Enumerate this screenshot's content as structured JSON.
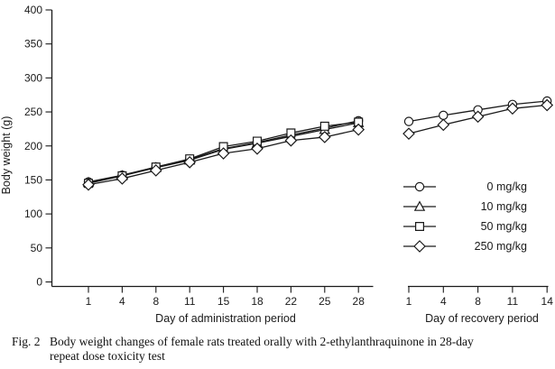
{
  "figure": {
    "caption_label": "Fig. 2",
    "caption_line1": "Body weight changes of female rats treated orally with 2-ethylanthraquinone in 28-day",
    "caption_line2": "repeat dose toxicity test"
  },
  "chart_data": {
    "type": "line",
    "title": "",
    "ylabel": "Body weight (g)",
    "ylim": [
      0,
      400
    ],
    "y_ticks": [
      0,
      50,
      100,
      150,
      200,
      250,
      300,
      350,
      400
    ],
    "grid": false,
    "line_color": "#1a1a1a",
    "marker_fill": "#ffffff",
    "panels": [
      {
        "name": "administration",
        "xlabel": "Day of administration period",
        "x": [
          1,
          4,
          8,
          11,
          15,
          18,
          22,
          25,
          28
        ],
        "series": [
          {
            "name": "0 mg/kg",
            "marker": "circle",
            "values": [
              147,
              157,
              169,
              180,
              196,
              205,
              216,
              226,
              237
            ]
          },
          {
            "name": "10 mg/kg",
            "marker": "triangle",
            "values": [
              146,
              156,
              168,
              179,
              195,
              204,
              214,
              224,
              234
            ]
          },
          {
            "name": "50 mg/kg",
            "marker": "square",
            "values": [
              145,
              156,
              169,
              181,
              199,
              207,
              219,
              229,
              235
            ]
          },
          {
            "name": "250 mg/kg",
            "marker": "diamond",
            "values": [
              143,
              152,
              164,
              176,
              189,
              196,
              208,
              213,
              224
            ]
          }
        ]
      },
      {
        "name": "recovery",
        "xlabel": "Day of recovery period",
        "x": [
          1,
          4,
          8,
          11,
          14
        ],
        "series": [
          {
            "name": "0 mg/kg",
            "marker": "circle",
            "values": [
              236,
              245,
              253,
              261,
              266
            ]
          },
          {
            "name": "250 mg/kg",
            "marker": "diamond",
            "values": [
              218,
              231,
              243,
              255,
              260
            ]
          }
        ]
      }
    ],
    "legend": {
      "position": "right-middle",
      "entries": [
        {
          "label": "0 mg/kg",
          "marker": "circle"
        },
        {
          "label": "10 mg/kg",
          "marker": "triangle"
        },
        {
          "label": "50 mg/kg",
          "marker": "square"
        },
        {
          "label": "250 mg/kg",
          "marker": "diamond"
        }
      ]
    }
  }
}
